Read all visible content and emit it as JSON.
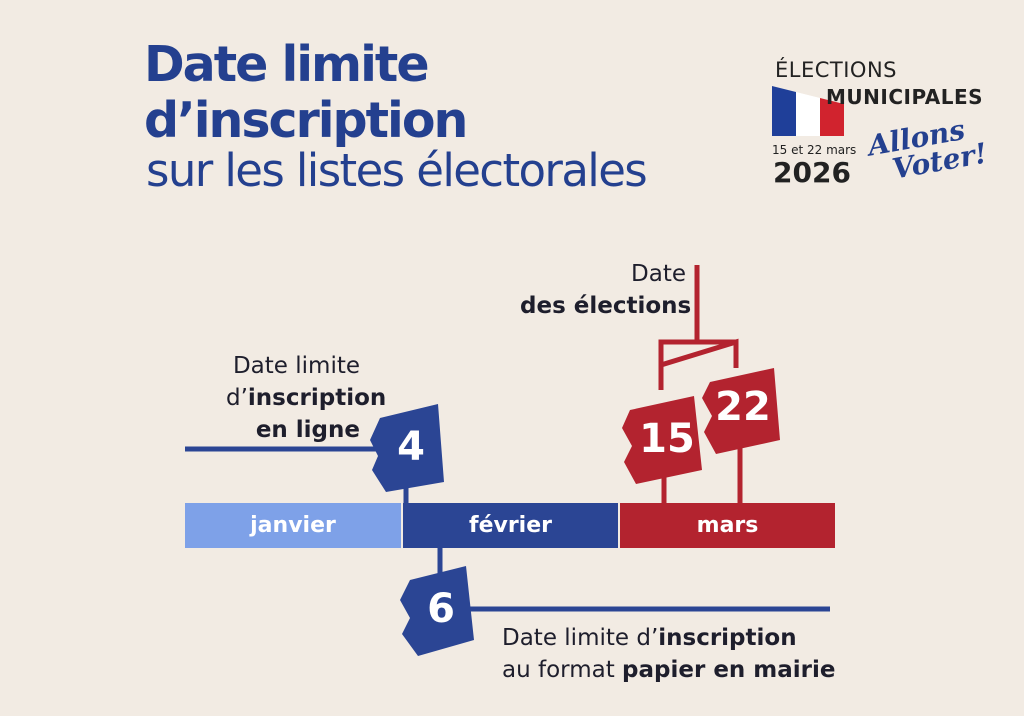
{
  "title": {
    "line1": "Date limite",
    "line2": "d’inscription",
    "line3": "sur les listes électorales"
  },
  "logo": {
    "line1": "ÉLECTIONS",
    "line2": "MUNICIPALES",
    "dates": "15 et 22 mars",
    "year": "2026",
    "slogan_1": "Allons",
    "slogan_2": "Voter!"
  },
  "timeline": {
    "months": [
      "janvier",
      "février",
      "mars"
    ],
    "online_deadline": {
      "day": "4",
      "label_1": "Date limite",
      "label_2_a": "d’",
      "label_2_b": "inscription",
      "label_3": "en ligne"
    },
    "paper_deadline": {
      "day": "6",
      "label_1_a": "Date limite d’",
      "label_1_b": "inscription",
      "label_2_a": "au format ",
      "label_2_b": "papier en mairie"
    },
    "elections": {
      "day_1": "15",
      "day_2": "22",
      "label_1": "Date",
      "label_2": "des élections"
    }
  },
  "colors": {
    "navy": "#2b4594",
    "light_blue": "#7ea1e8",
    "red": "#b3232f",
    "background": "#f2ebe3"
  }
}
